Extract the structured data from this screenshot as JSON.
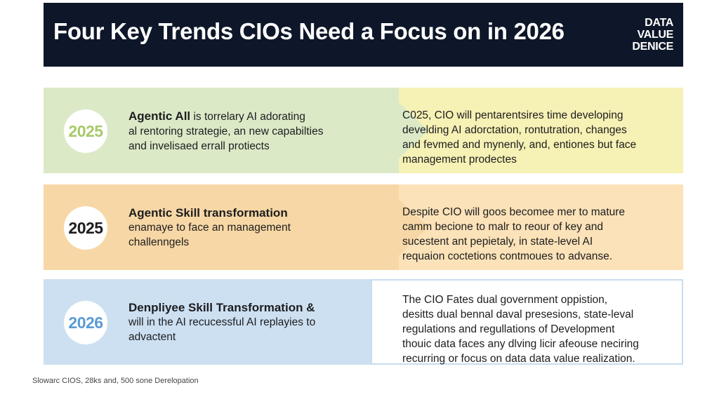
{
  "header": {
    "title": "Four Key Trends CIOs Need a Focus on in 2026",
    "logo_lines": [
      "DATA",
      "VALUE",
      "DENICE"
    ]
  },
  "trends": [
    {
      "year": "2025",
      "title": "Agentic All",
      "left_lines": [
        " is torrelary AI adorating",
        "al rentoring strategie, an new capabilties",
        "and invelisaed errall protiects"
      ],
      "right_lines": [
        "C025, CIO will pentarentsires time developing",
        "develding AI adorctation, rontutration, changes",
        "and fevmed and mynenly, and, entiones but face",
        "management prodectes"
      ],
      "color": "#dbe9c7"
    },
    {
      "year": "2025",
      "title": "Agentic Skill transformation",
      "left_lines": [
        "enamaye to face an management",
        "challenngels"
      ],
      "right_lines": [
        "Despite CIO will goos becomee mer to mature",
        "camm becione to malr to reour of key and",
        "sucestent ant pepietaly, in state-level AI",
        "requaion coctetions contmoues to advanse."
      ],
      "color": "#f7d7a5"
    },
    {
      "year": "2026",
      "title": "Denpliyee Skill Transformation &",
      "left_lines": [
        "will in the AI recucessful AI replayies to",
        "advactent"
      ],
      "right_lines": [
        "The CIO Fates dual government oppistion,",
        "desitts dual bennal daval presesions, state-leval",
        "regulations and regullations of Development",
        "thouic data faces any dlving licir afeouse neciring",
        "recurring or focus on data data value realization."
      ],
      "color": "#cde0f2"
    }
  ],
  "footer": {
    "source": "Slowarc CIOS, 28ks and, 500 sone Derelopation"
  }
}
